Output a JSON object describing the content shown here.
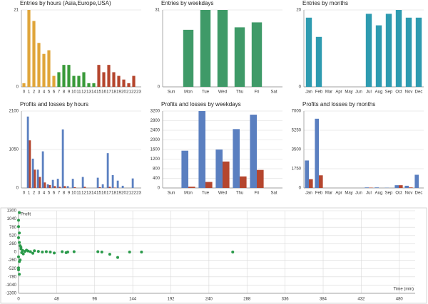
{
  "chart_data": [
    {
      "type": "bar",
      "title": "Entries by hours (Asia,Europe,USA)",
      "categories": [
        "0",
        "1",
        "2",
        "3",
        "4",
        "5",
        "6",
        "7",
        "8",
        "9",
        "10",
        "11",
        "12",
        "13",
        "14",
        "15",
        "16",
        "17",
        "18",
        "19",
        "20",
        "21",
        "22",
        "23"
      ],
      "values": [
        1,
        21,
        18,
        12,
        9,
        10,
        3,
        4,
        6,
        6,
        3,
        3,
        4,
        1,
        1,
        6,
        4,
        6,
        4,
        3,
        2,
        1,
        3,
        0
      ],
      "colors": [
        "#e0a53a",
        "#e0a53a",
        "#e0a53a",
        "#e0a53a",
        "#e0a53a",
        "#e0a53a",
        "#e0a53a",
        "#3a9a3a",
        "#3a9a3a",
        "#3a9a3a",
        "#3a9a3a",
        "#3a9a3a",
        "#3a9a3a",
        "#3a9a3a",
        "#3a9a3a",
        "#b5462e",
        "#b5462e",
        "#b5462e",
        "#b5462e",
        "#b5462e",
        "#b5462e",
        "#b5462e",
        "#b5462e",
        "#b5462e"
      ],
      "ylim": [
        0,
        21
      ],
      "yticks": [
        0,
        21
      ],
      "grid": true
    },
    {
      "type": "bar",
      "title": "Entries by weekdays",
      "categories": [
        "Sun",
        "Mon",
        "Tue",
        "Wed",
        "Thu",
        "Fri",
        "Sat"
      ],
      "values": [
        0,
        23,
        31,
        31,
        24,
        26,
        0
      ],
      "color": "#3f9a68",
      "ylim": [
        0,
        31
      ],
      "yticks": [
        0,
        31
      ],
      "grid": true
    },
    {
      "type": "bar",
      "title": "Entries by months",
      "categories": [
        "Jan",
        "Feb",
        "Mar",
        "Apr",
        "May",
        "Jun",
        "Jul",
        "Aug",
        "Sep",
        "Oct",
        "Nov",
        "Dec"
      ],
      "values": [
        18,
        13,
        0,
        0,
        0,
        0,
        19,
        16,
        19,
        20,
        18,
        18
      ],
      "color": "#2e9bb0",
      "ylim": [
        0,
        20
      ],
      "yticks": [
        0,
        20
      ],
      "grid": true
    },
    {
      "type": "bar",
      "title": "Profits and losses by hours",
      "categories": [
        "0",
        "1",
        "2",
        "3",
        "4",
        "5",
        "6",
        "7",
        "8",
        "9",
        "10",
        "11",
        "12",
        "13",
        "14",
        "15",
        "16",
        "17",
        "18",
        "19",
        "20",
        "21",
        "22",
        "23"
      ],
      "series": [
        {
          "color": "#5a7fc0",
          "values": [
            0,
            1950,
            800,
            500,
            1000,
            100,
            220,
            250,
            1600,
            50,
            250,
            0,
            300,
            0,
            0,
            280,
            100,
            950,
            350,
            200,
            60,
            0,
            260,
            0
          ]
        },
        {
          "color": "#b5462e",
          "values": [
            0,
            1300,
            500,
            300,
            150,
            80,
            50,
            30,
            50,
            0,
            20,
            0,
            30,
            0,
            0,
            20,
            0,
            30,
            10,
            0,
            0,
            0,
            0,
            0
          ]
        }
      ],
      "ylim": [
        0,
        2100
      ],
      "yticks": [
        0,
        1050,
        2100
      ],
      "grid": true
    },
    {
      "type": "bar",
      "title": "Profits and losses by weekdays",
      "categories": [
        "Sun",
        "Mon",
        "Tue",
        "Wed",
        "Thu",
        "Fri",
        "Sat"
      ],
      "series": [
        {
          "color": "#5a7fc0",
          "values": [
            0,
            1550,
            3200,
            1600,
            2450,
            3050,
            0
          ]
        },
        {
          "color": "#b5462e",
          "values": [
            0,
            50,
            250,
            1100,
            480,
            750,
            0
          ]
        }
      ],
      "ylim": [
        0,
        3200
      ],
      "yticks": [
        0,
        400,
        800,
        1200,
        1600,
        2000,
        2400,
        2800,
        3200
      ],
      "grid": true
    },
    {
      "type": "bar",
      "title": "Profits and losses by months",
      "categories": [
        "Jan",
        "Feb",
        "Mar",
        "Apr",
        "May",
        "Jun",
        "Jul",
        "Aug",
        "Sep",
        "Oct",
        "Nov",
        "Dec"
      ],
      "series": [
        {
          "color": "#5a7fc0",
          "values": [
            2500,
            6300,
            0,
            0,
            0,
            0,
            50,
            50,
            20,
            250,
            200,
            1200
          ]
        },
        {
          "color": "#b5462e",
          "values": [
            800,
            1150,
            0,
            0,
            0,
            0,
            30,
            0,
            0,
            250,
            50,
            0
          ]
        }
      ],
      "ylim": [
        0,
        7000
      ],
      "yticks": [
        0,
        1750,
        3500,
        5250,
        7000
      ],
      "grid": true
    },
    {
      "type": "scatter",
      "ylabel": "Profit",
      "xlabel": "Time (min)",
      "color": "#2a9a4a",
      "x": [
        0,
        1,
        0,
        1,
        0,
        1,
        2,
        0,
        1,
        0,
        0,
        1,
        3,
        5,
        8,
        10,
        12,
        15,
        20,
        25,
        30,
        35,
        40,
        45,
        55,
        60,
        62,
        70,
        100,
        105,
        115,
        125,
        140,
        155,
        270,
        4,
        6,
        3,
        2,
        18
      ],
      "values": [
        1000,
        1240,
        800,
        600,
        450,
        300,
        200,
        -150,
        -300,
        -500,
        -560,
        -700,
        100,
        50,
        20,
        60,
        30,
        10,
        40,
        20,
        0,
        10,
        0,
        -30,
        10,
        -20,
        0,
        10,
        10,
        0,
        -70,
        -170,
        0,
        0,
        0,
        -20,
        -60,
        150,
        -250,
        -40
      ],
      "xlim": [
        0,
        500
      ],
      "xticks": [
        0,
        48,
        96,
        144,
        192,
        240,
        288,
        336,
        384,
        432,
        480
      ],
      "ylim": [
        -1300,
        1300
      ],
      "yticks": [
        -1300,
        -1040,
        -780,
        -520,
        -260,
        0,
        260,
        520,
        780,
        1040,
        1300
      ],
      "grid": true
    }
  ]
}
